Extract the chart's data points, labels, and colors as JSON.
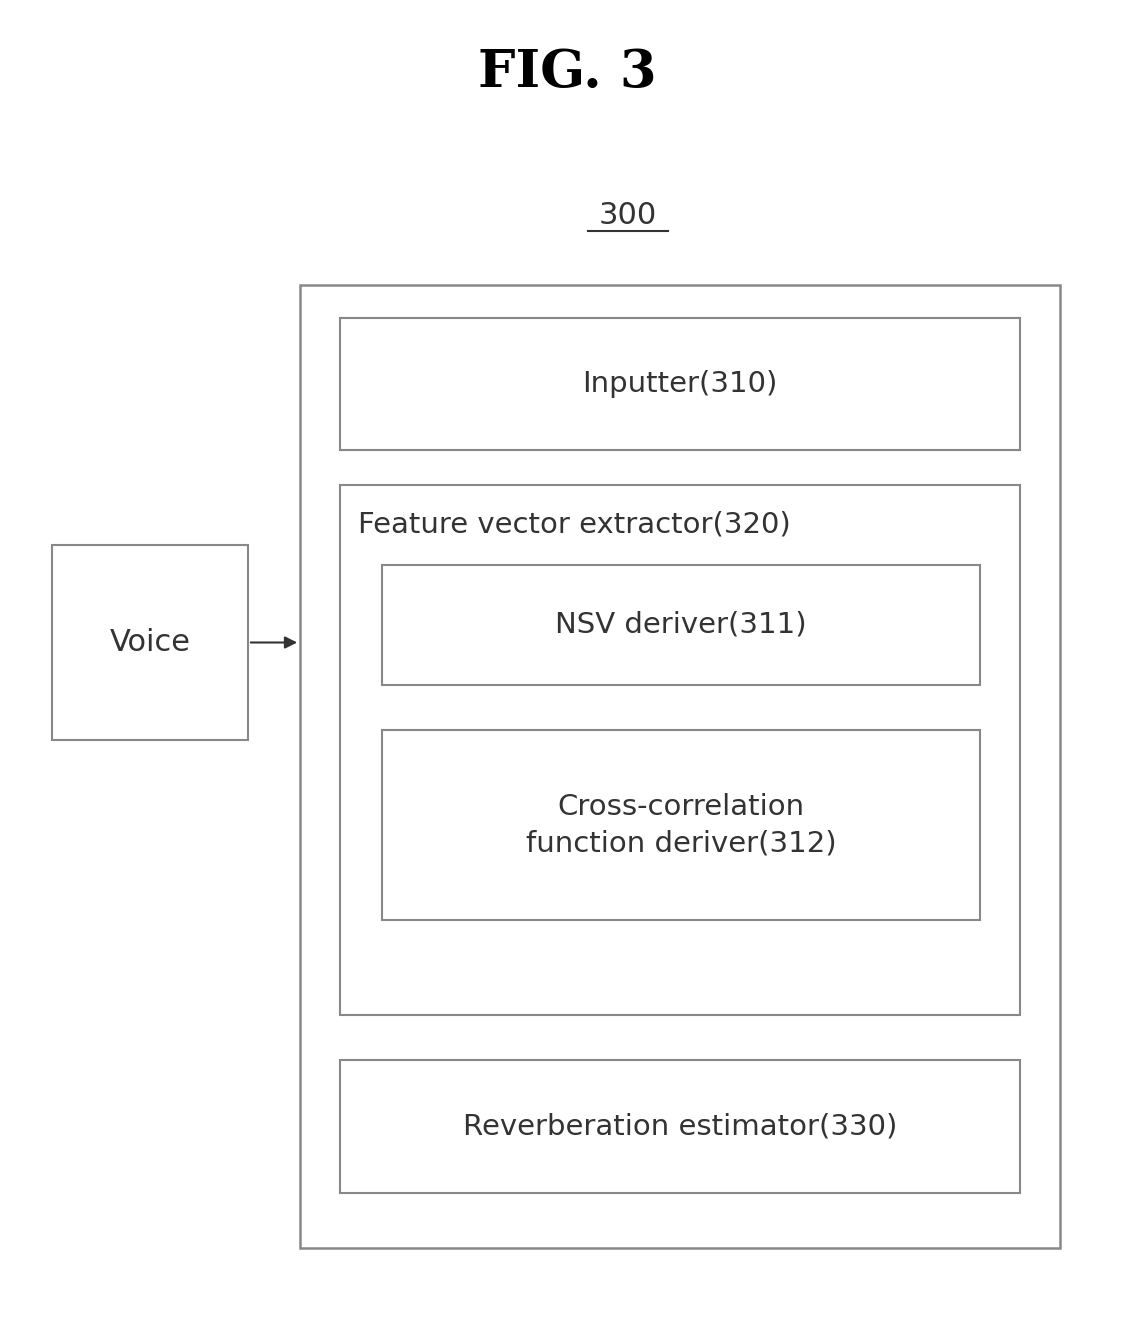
{
  "title": "FIG. 3",
  "label_300": "300",
  "voice_label": "Voice",
  "inputter_label": "Inputter(310)",
  "feature_extractor_label": "Feature vector extractor(320)",
  "nsv_label": "NSV deriver(311)",
  "cross_corr_label": "Cross-correlation\nfunction deriver(312)",
  "reverb_label": "Reverberation estimator(330)",
  "bg_color": "#ffffff",
  "box_edge_color": "#888888",
  "text_color": "#333333",
  "title_color": "#000000",
  "fig_width": 11.35,
  "fig_height": 13.21,
  "dpi": 100
}
